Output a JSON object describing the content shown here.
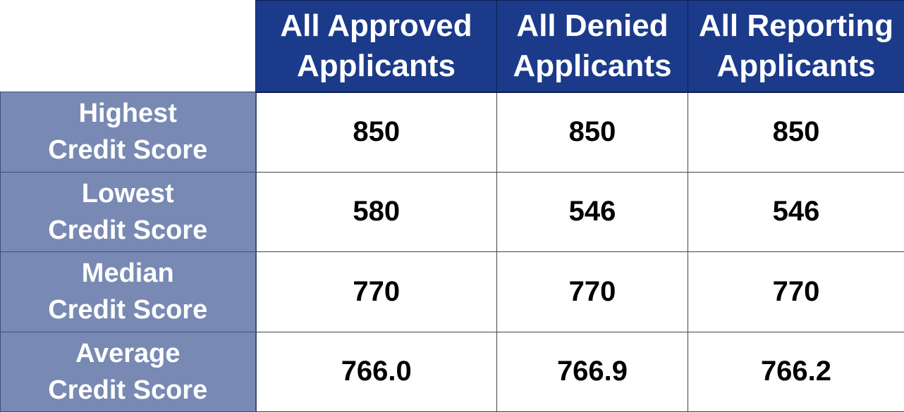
{
  "chart_data": {
    "type": "table",
    "title": "",
    "columns": [
      [
        "All Approved",
        "Applicants"
      ],
      [
        "All Denied",
        "Applicants"
      ],
      [
        "All Reporting",
        "Applicants"
      ]
    ],
    "rows": [
      {
        "label": [
          "Highest",
          "Credit Score"
        ],
        "values": [
          "850",
          "850",
          "850"
        ]
      },
      {
        "label": [
          "Lowest",
          "Credit Score"
        ],
        "values": [
          "580",
          "546",
          "546"
        ]
      },
      {
        "label": [
          "Median",
          "Credit Score"
        ],
        "values": [
          "770",
          "770",
          "770"
        ]
      },
      {
        "label": [
          "Average",
          "Credit Score"
        ],
        "values": [
          "766.0",
          "766.9",
          "766.2"
        ]
      }
    ]
  },
  "colors": {
    "header_background": "#1b3a8a",
    "row_label_background": "#7889b3",
    "cell_background": "#ffffff",
    "header_text": "#ffffff",
    "value_text": "#000000"
  }
}
